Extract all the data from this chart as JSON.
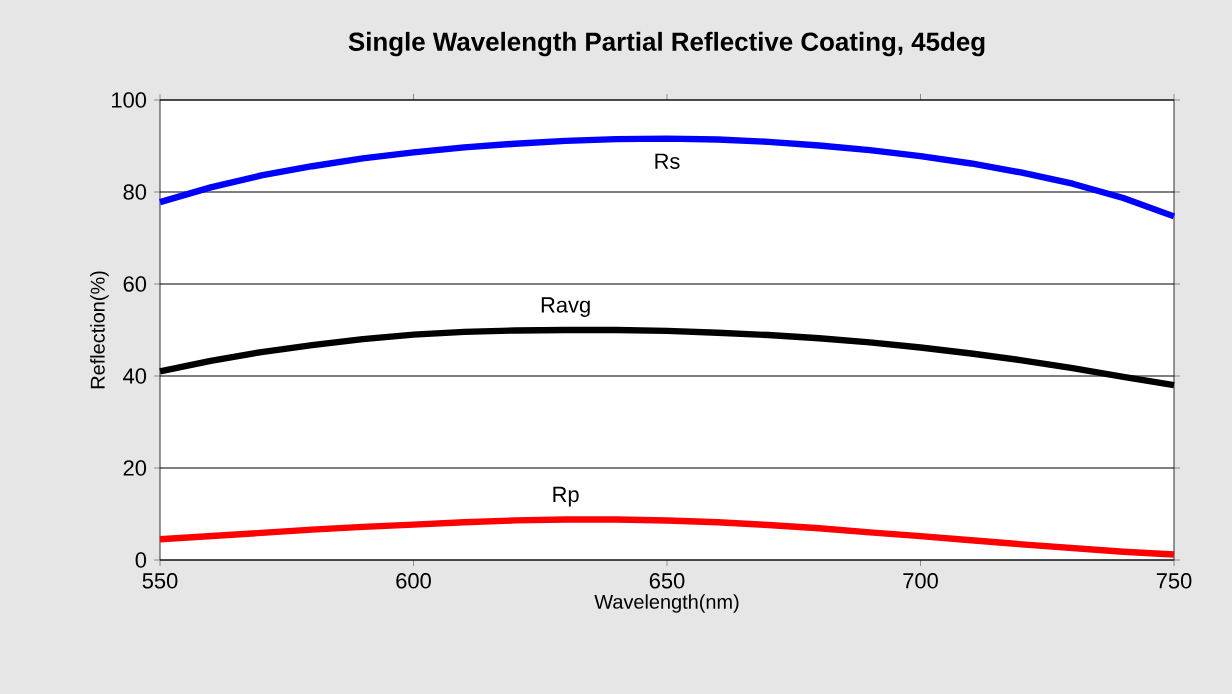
{
  "chart_data": {
    "type": "line",
    "title": "Single Wavelength Partial Reflective Coating, 45deg",
    "xlabel": "Wavelength(nm)",
    "ylabel": "Reflection(%)",
    "x": [
      550,
      560,
      570,
      580,
      590,
      600,
      610,
      620,
      630,
      640,
      650,
      660,
      670,
      680,
      690,
      700,
      710,
      720,
      730,
      740,
      750
    ],
    "series": [
      {
        "name": "Rs",
        "color": "#0000ff",
        "values": [
          77.8,
          81,
          83.6,
          85.6,
          87.3,
          88.6,
          89.7,
          90.5,
          91.1,
          91.5,
          91.6,
          91.4,
          90.9,
          90.1,
          89.1,
          87.8,
          86.2,
          84.2,
          81.8,
          78.7,
          74.7
        ]
      },
      {
        "name": "Ravg",
        "color": "#000000",
        "values": [
          41,
          43.3,
          45.2,
          46.7,
          48,
          49,
          49.6,
          49.9,
          50,
          50,
          49.8,
          49.4,
          48.9,
          48.2,
          47.3,
          46.2,
          44.9,
          43.4,
          41.7,
          39.8,
          38
        ]
      },
      {
        "name": "Rp",
        "color": "#ff0000",
        "values": [
          4.5,
          5.2,
          5.9,
          6.6,
          7.2,
          7.7,
          8.2,
          8.6,
          8.8,
          8.8,
          8.6,
          8.2,
          7.6,
          6.9,
          6,
          5.2,
          4.3,
          3.4,
          2.6,
          1.8,
          1.2
        ]
      }
    ],
    "xlim": [
      550,
      750
    ],
    "xticks": [
      550,
      600,
      650,
      700,
      750
    ],
    "ylim": [
      0,
      100
    ],
    "yticks": [
      0,
      20,
      40,
      60,
      80,
      100
    ],
    "grid": "y",
    "legend": false,
    "marker": "none",
    "line_style": "solid"
  }
}
